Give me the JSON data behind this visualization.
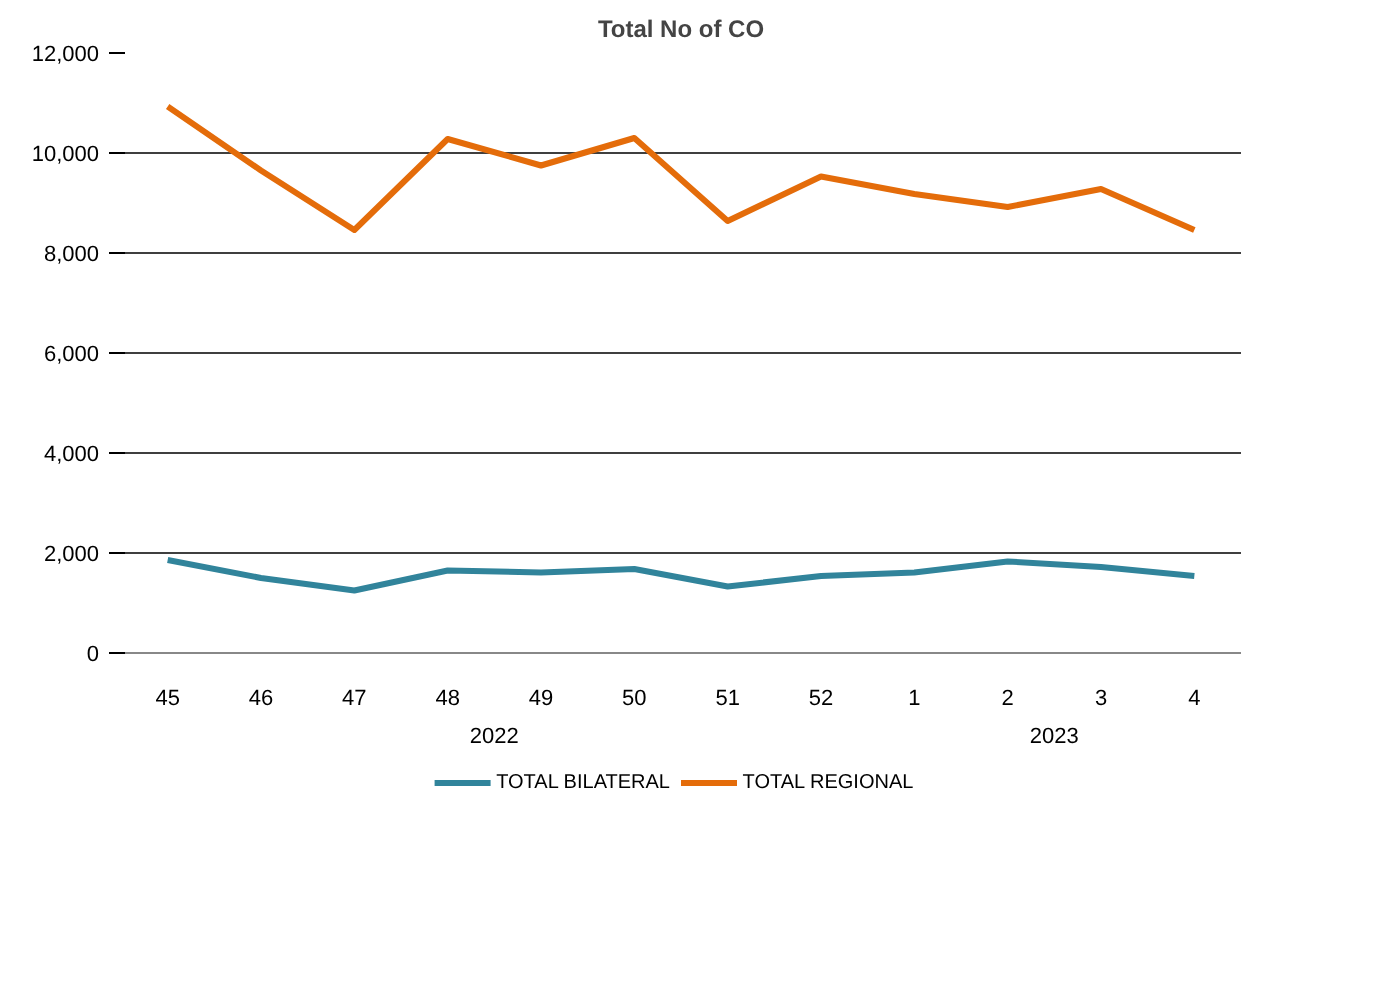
{
  "chart_data": {
    "type": "line",
    "title": "Total No of CO",
    "categories": [
      "45",
      "46",
      "47",
      "48",
      "49",
      "50",
      "51",
      "52",
      "1",
      "2",
      "3",
      "4"
    ],
    "series": [
      {
        "name": "TOTAL BILATERAL",
        "color": "#31849b",
        "values": [
          1860,
          1500,
          1250,
          1650,
          1610,
          1680,
          1330,
          1540,
          1610,
          1830,
          1720,
          1540
        ]
      },
      {
        "name": "TOTAL REGIONAL",
        "color": "#e46c0a",
        "values": [
          10930,
          9650,
          8460,
          10280,
          9750,
          10300,
          8640,
          9530,
          9180,
          8920,
          9280,
          8460
        ]
      }
    ],
    "annotations": [
      "2022",
      "2023"
    ],
    "ylim": [
      0,
      12000
    ],
    "yticks": [
      {
        "value": 0,
        "label": "0"
      },
      {
        "value": 2000,
        "label": "2,000"
      },
      {
        "value": 4000,
        "label": "4,000"
      },
      {
        "value": 6000,
        "label": "6,000"
      },
      {
        "value": 8000,
        "label": "8,000"
      },
      {
        "value": 10000,
        "label": "10,000"
      },
      {
        "value": 12000,
        "label": "12,000"
      }
    ],
    "grid": "y",
    "legend": "bottom",
    "marker": "none",
    "line_style": "solid"
  }
}
